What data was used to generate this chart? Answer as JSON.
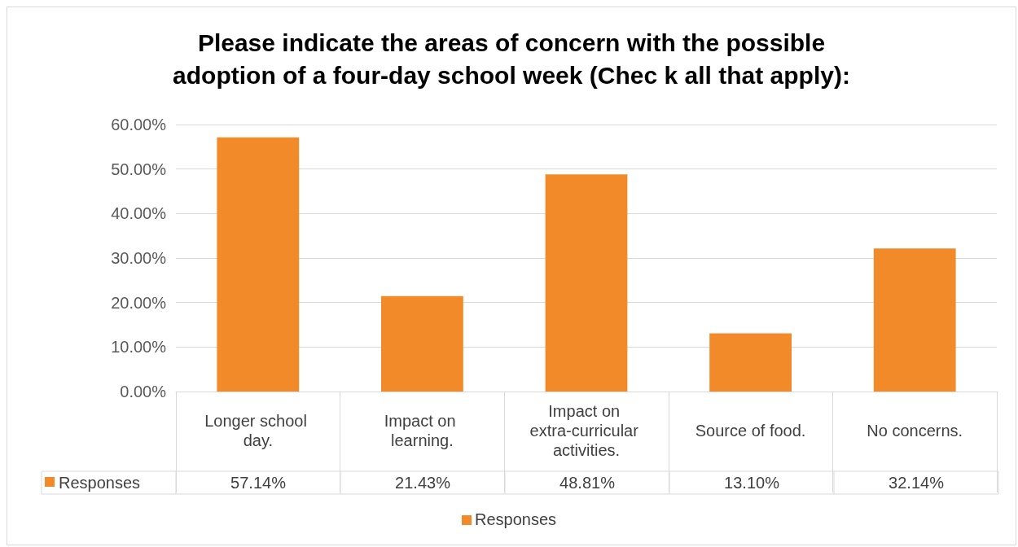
{
  "chart_data": {
    "type": "bar",
    "title": "Please indicate the areas of concern with the possible\nadoption of a four-day school week (Chec k all that apply):",
    "categories": [
      "Longer school day.",
      "Impact on learning.",
      "Impact on extra-curricular activities.",
      "Source of food.",
      "No concerns."
    ],
    "series": [
      {
        "name": "Responses",
        "color": "#f28a2a",
        "values": [
          57.14,
          21.43,
          48.81,
          13.1,
          32.14
        ],
        "value_labels": [
          "57.14%",
          "21.43%",
          "48.81%",
          "13.10%",
          "32.14%"
        ]
      }
    ],
    "ylim": [
      0,
      60
    ],
    "yticks": [
      {
        "value": 0,
        "label": "0.00%"
      },
      {
        "value": 10,
        "label": "10.00%"
      },
      {
        "value": 20,
        "label": "20.00%"
      },
      {
        "value": 30,
        "label": "30.00%"
      },
      {
        "value": 40,
        "label": "40.00%"
      },
      {
        "value": 50,
        "label": "50.00%"
      },
      {
        "value": 60,
        "label": "60.00%"
      }
    ],
    "grid": "y",
    "legend": "bottom"
  }
}
